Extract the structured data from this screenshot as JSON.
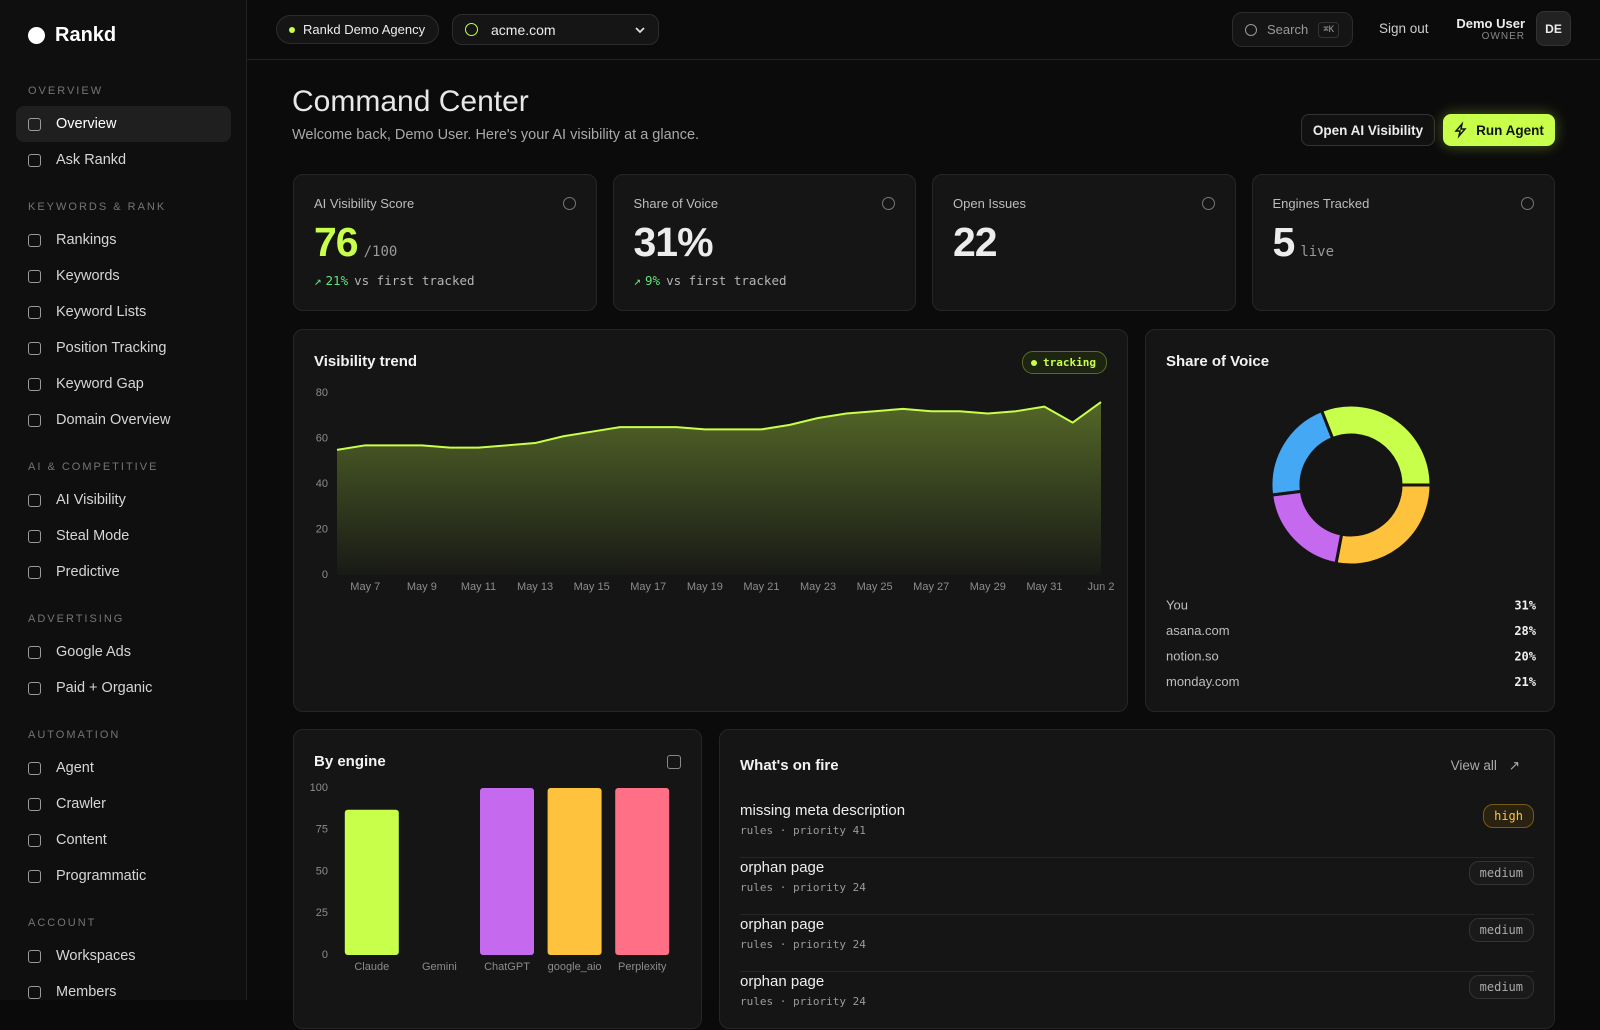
{
  "sidebar": {
    "brand": "Rankd",
    "sections": [
      {
        "title": "OVERVIEW",
        "items": [
          "Overview",
          "Ask Rankd"
        ]
      },
      {
        "title": "KEYWORDS & RANK",
        "items": [
          "Rankings",
          "Keywords",
          "Keyword Lists",
          "Position Tracking",
          "Keyword Gap",
          "Domain Overview"
        ]
      },
      {
        "title": "AI & COMPETITIVE",
        "items": [
          "AI Visibility",
          "Steal Mode",
          "Predictive"
        ]
      },
      {
        "title": "ADVERTISING",
        "items": [
          "Google Ads",
          "Paid + Organic"
        ]
      },
      {
        "title": "AUTOMATION",
        "items": [
          "Agent",
          "Crawler",
          "Content",
          "Programmatic"
        ]
      },
      {
        "title": "ACCOUNT",
        "items": [
          "Workspaces",
          "Members"
        ]
      }
    ]
  },
  "topbar": {
    "agency": "Rankd Demo Agency",
    "domain": "acme.com",
    "search": "Search",
    "shortcut": "⌘K",
    "sign_out": "Sign out",
    "user_name": "Demo User",
    "user_role": "OWNER",
    "avatar": "DE"
  },
  "header": {
    "title": "Command Center",
    "subtitle": "Welcome back, Demo User. Here's your AI visibility at a glance.",
    "buttons": [
      "Open AI Visibility",
      "Run Agent"
    ]
  },
  "stats": [
    {
      "label": "AI Visibility Score",
      "value": "76",
      "unit": "/100",
      "delta": "21%",
      "note": "vs first tracked"
    },
    {
      "label": "Share of Voice",
      "value": "31%",
      "delta": "9%",
      "note": "vs first tracked"
    },
    {
      "label": "Open Issues",
      "value": "22"
    },
    {
      "label": "Engines Tracked",
      "value": "5",
      "unit": "live"
    }
  ],
  "chart_data": [
    {
      "type": "area",
      "title": "Visibility trend",
      "badge": "tracking",
      "color": "#c8ff4a",
      "categories": [
        null,
        "May 7",
        null,
        "May 9",
        null,
        "May 11",
        null,
        "May 13",
        null,
        "May 15",
        null,
        "May 17",
        null,
        "May 19",
        null,
        "May 21",
        null,
        "May 23",
        null,
        "May 25",
        null,
        "May 27",
        null,
        "May 29",
        null,
        "May 31",
        null,
        "Jun 2"
      ],
      "values": [
        55,
        57,
        57,
        57,
        56,
        56,
        57,
        58,
        61,
        63,
        65,
        65,
        65,
        64,
        64,
        64,
        66,
        69,
        71,
        72,
        73,
        72,
        72,
        71,
        72,
        74,
        67,
        76
      ],
      "ylim": [
        0,
        80
      ],
      "yticks": [
        0,
        20,
        40,
        60,
        80
      ]
    },
    {
      "type": "donut",
      "title": "Share of Voice",
      "categories": [
        "You",
        "asana.com",
        "notion.so",
        "monday.com"
      ],
      "values": [
        31,
        28,
        20,
        21
      ],
      "value_labels": [
        "31%",
        "28%",
        "20%",
        "21%"
      ],
      "colors": [
        "#c8ff4a",
        "#ffc23d",
        "#c569ef",
        "#45a8f5"
      ]
    },
    {
      "type": "bar",
      "title": "By engine",
      "categories": [
        "Claude",
        "Gemini",
        "ChatGPT",
        "google_aio",
        "Perplexity"
      ],
      "values": [
        87,
        0,
        100,
        100,
        100
      ],
      "colors": [
        "#c8ff4a",
        "#45a8f5",
        "#c569ef",
        "#ffc23d",
        "#ff6f86"
      ],
      "ylim": [
        0,
        100
      ],
      "yticks": [
        0,
        25,
        50,
        75,
        100
      ]
    }
  ],
  "issues": {
    "title": "What's on fire",
    "view_all": "View all",
    "rows": [
      {
        "title": "missing meta description",
        "meta": "rules · priority 41",
        "severity": "high"
      },
      {
        "title": "orphan page",
        "meta": "rules · priority 24",
        "severity": "medium"
      },
      {
        "title": "orphan page",
        "meta": "rules · priority 24",
        "severity": "medium"
      },
      {
        "title": "orphan page",
        "meta": "rules · priority 24",
        "severity": "medium"
      }
    ]
  }
}
